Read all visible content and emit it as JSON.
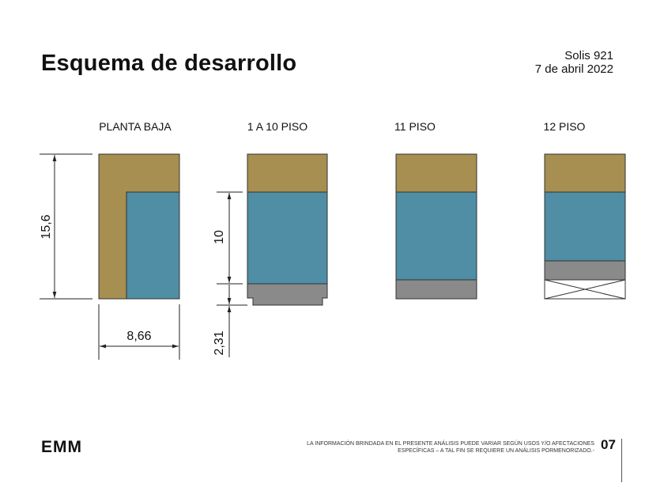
{
  "header": {
    "title": "Esquema de desarrollo",
    "project": "Solis 921",
    "date": "7 de abril 2022"
  },
  "levels": [
    {
      "label": "PLANTA BAJA"
    },
    {
      "label": "1 A 10 PISO"
    },
    {
      "label": "11 PISO"
    },
    {
      "label": "12 PISO"
    }
  ],
  "dimensions": {
    "height": "15,6",
    "width": "8,66",
    "floors_height": "10",
    "base_height": "2,31"
  },
  "colors": {
    "ochre": "#a68f50",
    "teal": "#4f8ea4",
    "gray": "#8a8a8a",
    "line": "#333333"
  },
  "footer": {
    "logo": "EMM",
    "disclaimer_line1": "LA INFORMACIÓN BRINDADA EN EL PRESENTE ANÁLISIS PUEDE VARIAR SEGÚN USOS Y/O AFECTACIONES",
    "disclaimer_line2": "ESPECÍFICAS – A TAL FIN SE REQUIERE UN ANÁLISIS PORMENORIZADO.-",
    "page": "07"
  }
}
